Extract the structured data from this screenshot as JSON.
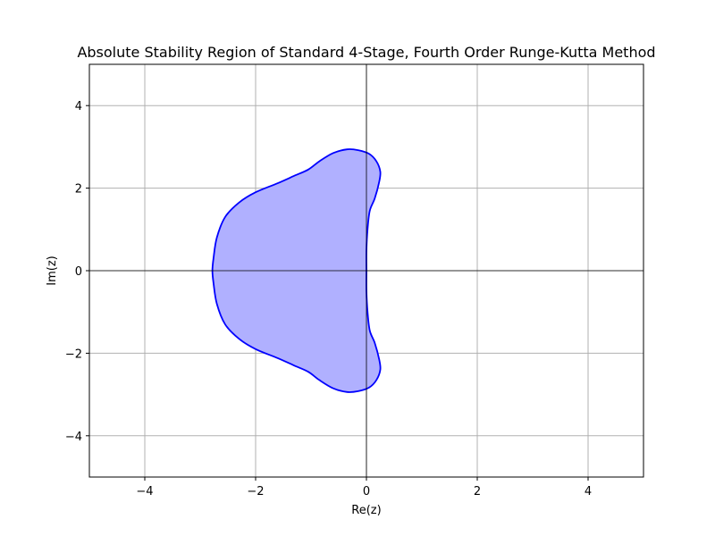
{
  "chart_data": {
    "type": "area",
    "title": "Absolute Stability Region of Standard 4-Stage, Fourth Order Runge-Kutta Method",
    "xlabel": "Re(z)",
    "ylabel": "Im(z)",
    "xlim": [
      -5,
      5
    ],
    "ylim": [
      -5,
      5
    ],
    "xticks": [
      -4,
      -2,
      0,
      2,
      4
    ],
    "yticks": [
      -4,
      -2,
      0,
      2,
      4
    ],
    "xtick_labels": [
      "−4",
      "−2",
      "0",
      "2",
      "4"
    ],
    "ytick_labels": [
      "−4",
      "−2",
      "0",
      "2",
      "4"
    ],
    "grid": true,
    "axis_lines_through_origin": true,
    "series": [
      {
        "boundary_upper_half": [
          [
            0.0,
            0.0
          ],
          [
            0.0,
            0.5
          ],
          [
            0.02,
            1.0
          ],
          [
            0.06,
            1.45
          ],
          [
            0.15,
            1.75
          ],
          [
            0.23,
            2.15
          ],
          [
            0.25,
            2.4
          ],
          [
            0.18,
            2.65
          ],
          [
            0.05,
            2.83
          ],
          [
            -0.15,
            2.92
          ],
          [
            -0.35,
            2.94
          ],
          [
            -0.6,
            2.85
          ],
          [
            -0.85,
            2.65
          ],
          [
            -1.05,
            2.45
          ],
          [
            -1.3,
            2.3
          ],
          [
            -1.6,
            2.12
          ],
          [
            -2.0,
            1.9
          ],
          [
            -2.3,
            1.65
          ],
          [
            -2.55,
            1.3
          ],
          [
            -2.7,
            0.8
          ],
          [
            -2.76,
            0.3
          ],
          [
            -2.78,
            0.0
          ]
        ],
        "line_color": "#0000ff",
        "fill_color": "#b0b0ff",
        "mirrored_about_real_axis": true
      }
    ]
  }
}
